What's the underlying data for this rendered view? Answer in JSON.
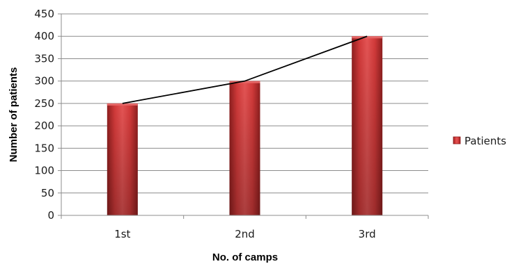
{
  "chart_data": {
    "type": "bar",
    "categories": [
      "1st",
      "2nd",
      "3rd"
    ],
    "series": [
      {
        "name": "Patients",
        "values": [
          250,
          300,
          400
        ],
        "color": "#d63a3a"
      }
    ],
    "trendline": {
      "values": [
        250,
        300,
        400
      ],
      "color": "#000000"
    },
    "xlabel": "No. of camps",
    "ylabel": "Number of patients",
    "ylim": [
      0,
      450
    ],
    "yticks": [
      0,
      50,
      100,
      150,
      200,
      250,
      300,
      350,
      400,
      450
    ],
    "grid": true,
    "legend_position": "right"
  }
}
